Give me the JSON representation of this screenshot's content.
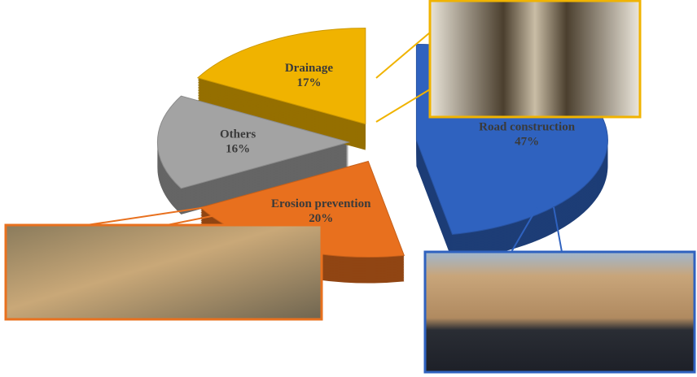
{
  "chart_data": {
    "type": "pie",
    "categories": [
      "Road construction",
      "Erosion prevention",
      "Others",
      "Drainage"
    ],
    "values": [
      47,
      20,
      16,
      17
    ],
    "value_labels": [
      "47%",
      "20%",
      "16%",
      "17%"
    ],
    "colors": [
      "#2f62bf",
      "#e8701e",
      "#a3a3a3",
      "#f0b300"
    ]
  }
}
